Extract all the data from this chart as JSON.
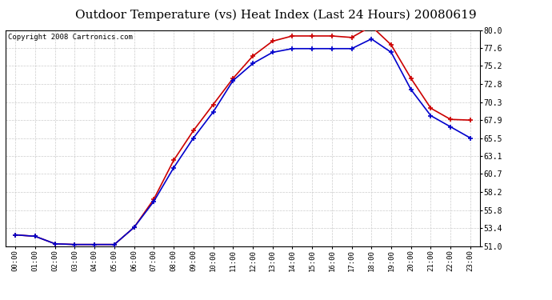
{
  "title": "Outdoor Temperature (vs) Heat Index (Last 24 Hours) 20080619",
  "copyright": "Copyright 2008 Cartronics.com",
  "hours": [
    "00:00",
    "01:00",
    "02:00",
    "03:00",
    "04:00",
    "05:00",
    "06:00",
    "07:00",
    "08:00",
    "09:00",
    "10:00",
    "11:00",
    "12:00",
    "13:00",
    "14:00",
    "15:00",
    "16:00",
    "17:00",
    "18:00",
    "19:00",
    "20:00",
    "21:00",
    "22:00",
    "23:00"
  ],
  "temp": [
    52.5,
    52.3,
    51.3,
    51.2,
    51.2,
    51.2,
    53.5,
    57.3,
    62.5,
    66.5,
    70.0,
    73.5,
    76.5,
    78.5,
    79.2,
    79.2,
    79.2,
    79.0,
    80.5,
    78.0,
    73.5,
    69.5,
    68.0,
    67.9
  ],
  "heat_index": [
    52.5,
    52.3,
    51.3,
    51.2,
    51.2,
    51.2,
    53.5,
    57.0,
    61.5,
    65.5,
    69.0,
    73.2,
    75.5,
    77.0,
    77.5,
    77.5,
    77.5,
    77.5,
    78.8,
    77.0,
    72.0,
    68.5,
    67.0,
    65.5
  ],
  "ylim": [
    51.0,
    80.0
  ],
  "yticks": [
    51.0,
    53.4,
    55.8,
    58.2,
    60.7,
    63.1,
    65.5,
    67.9,
    70.3,
    72.8,
    75.2,
    77.6,
    80.0
  ],
  "temp_color": "#cc0000",
  "heat_color": "#0000cc",
  "bg_color": "#ffffff",
  "grid_color": "#cccccc",
  "title_fontsize": 11,
  "copyright_fontsize": 6.5
}
